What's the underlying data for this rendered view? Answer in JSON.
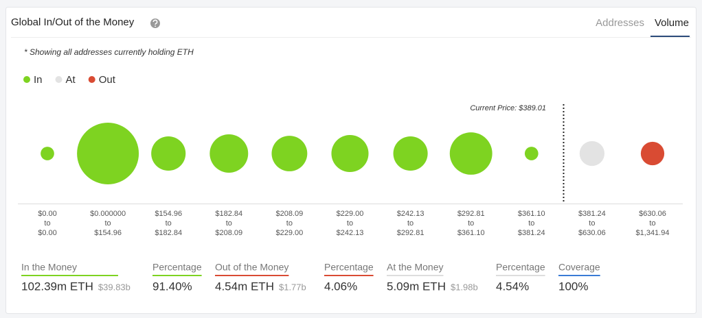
{
  "header": {
    "title": "Global In/Out of the Money",
    "tabs": [
      "Addresses",
      "Volume"
    ]
  },
  "chart_data": {
    "type": "bubble",
    "note": "* Showing all addresses currently holding ETH",
    "annotation": "Current Price: $389.01",
    "range_connector": "to",
    "categories_from": [
      "$0.00",
      "$0.000000",
      "$154.96",
      "$182.84",
      "$208.09",
      "$229.00",
      "$242.13",
      "$292.81",
      "$361.10",
      "$381.24",
      "$630.06"
    ],
    "categories_to": [
      "$0.00",
      "$154.96",
      "$182.84",
      "$208.09",
      "$229.00",
      "$242.13",
      "$292.81",
      "$361.10",
      "$381.24",
      "$630.06",
      "$1,341.94"
    ],
    "series": [
      {
        "name": "In",
        "color": "#7ed321",
        "values": [
          1.5,
          31.3,
          9.7,
          12.1,
          10.4,
          11.3,
          9.7,
          14.8,
          1.5,
          null,
          null
        ]
      },
      {
        "name": "At",
        "color": "#e3e3e3",
        "values": [
          null,
          null,
          null,
          null,
          null,
          null,
          null,
          null,
          null,
          5.09,
          null
        ]
      },
      {
        "name": "Out",
        "color": "#d94b33",
        "values": [
          null,
          null,
          null,
          null,
          null,
          null,
          null,
          null,
          null,
          null,
          4.54
        ]
      }
    ]
  },
  "stats": [
    {
      "label": "In the Money",
      "value": "102.39m ETH",
      "sub": "$39.83b",
      "color": "#7ed321"
    },
    {
      "label": "Percentage",
      "value": "91.40%",
      "color": "#7ed321"
    },
    {
      "label": "Out of the Money",
      "value": "4.54m ETH",
      "sub": "$1.77b",
      "color": "#d94b33"
    },
    {
      "label": "Percentage",
      "value": "4.06%",
      "color": "#d94b33"
    },
    {
      "label": "At the Money",
      "value": "5.09m ETH",
      "sub": "$1.98b",
      "color": "#dddddd"
    },
    {
      "label": "Percentage",
      "value": "4.54%",
      "color": "#dddddd"
    },
    {
      "label": "Coverage",
      "value": "100%",
      "color": "#3a7bd5"
    }
  ]
}
